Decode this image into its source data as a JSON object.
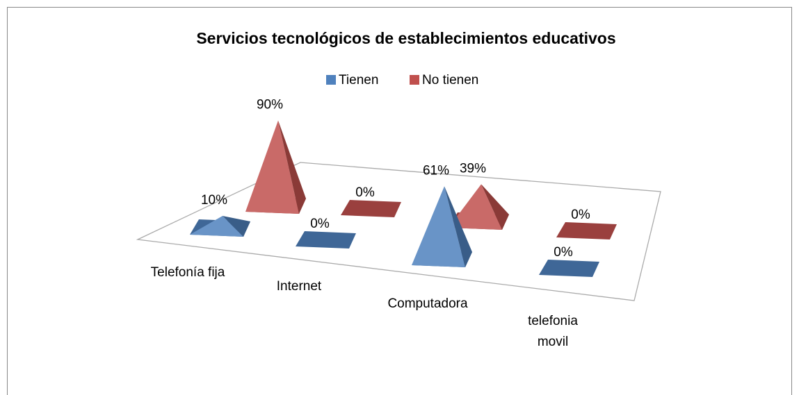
{
  "chart_data": {
    "type": "pyramid",
    "title": "Servicios tecnológicos de establecimientos educativos",
    "categories": [
      "Telefonía fija",
      "Internet",
      "Computadora",
      "telefonia movil"
    ],
    "series": [
      {
        "name": "Tienen",
        "color": "#4f81bd",
        "values": [
          10,
          0,
          61,
          0
        ],
        "value_labels": [
          "10%",
          "0%",
          "61%",
          "0%"
        ]
      },
      {
        "name": "No tienen",
        "color": "#c0504d",
        "values": [
          90,
          0,
          39,
          0
        ],
        "value_labels": [
          "90%",
          "0%",
          "39%",
          "0%"
        ]
      }
    ]
  }
}
